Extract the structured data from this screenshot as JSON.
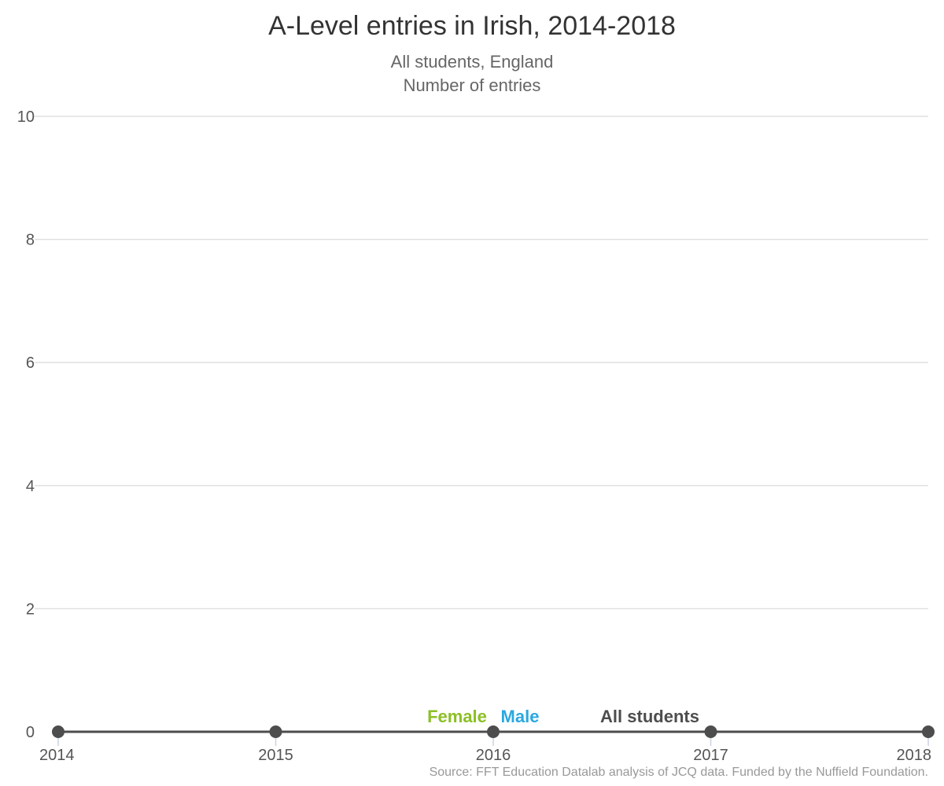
{
  "chart_data": {
    "type": "line",
    "title": "A-Level entries in Irish, 2014-2018",
    "subtitle": [
      "All students, England",
      "Number of entries"
    ],
    "x": [
      "2014",
      "2015",
      "2016",
      "2017",
      "2018"
    ],
    "ylim": [
      0,
      10
    ],
    "yticks": [
      "0",
      "2",
      "4",
      "6",
      "8",
      "10"
    ],
    "grid": true,
    "series": [
      {
        "name": "Female",
        "values": [
          0,
          0,
          0,
          0,
          0
        ],
        "color": "#8cbf26"
      },
      {
        "name": "Male",
        "values": [
          0,
          0,
          0,
          0,
          0
        ],
        "color": "#2aa8e0"
      },
      {
        "name": "All students",
        "values": [
          0,
          0,
          0,
          0,
          0
        ],
        "color": "#4d4d4d"
      }
    ],
    "source": "Source: FFT Education Datalab analysis of JCQ data. Funded by the Nuffield Foundation."
  }
}
